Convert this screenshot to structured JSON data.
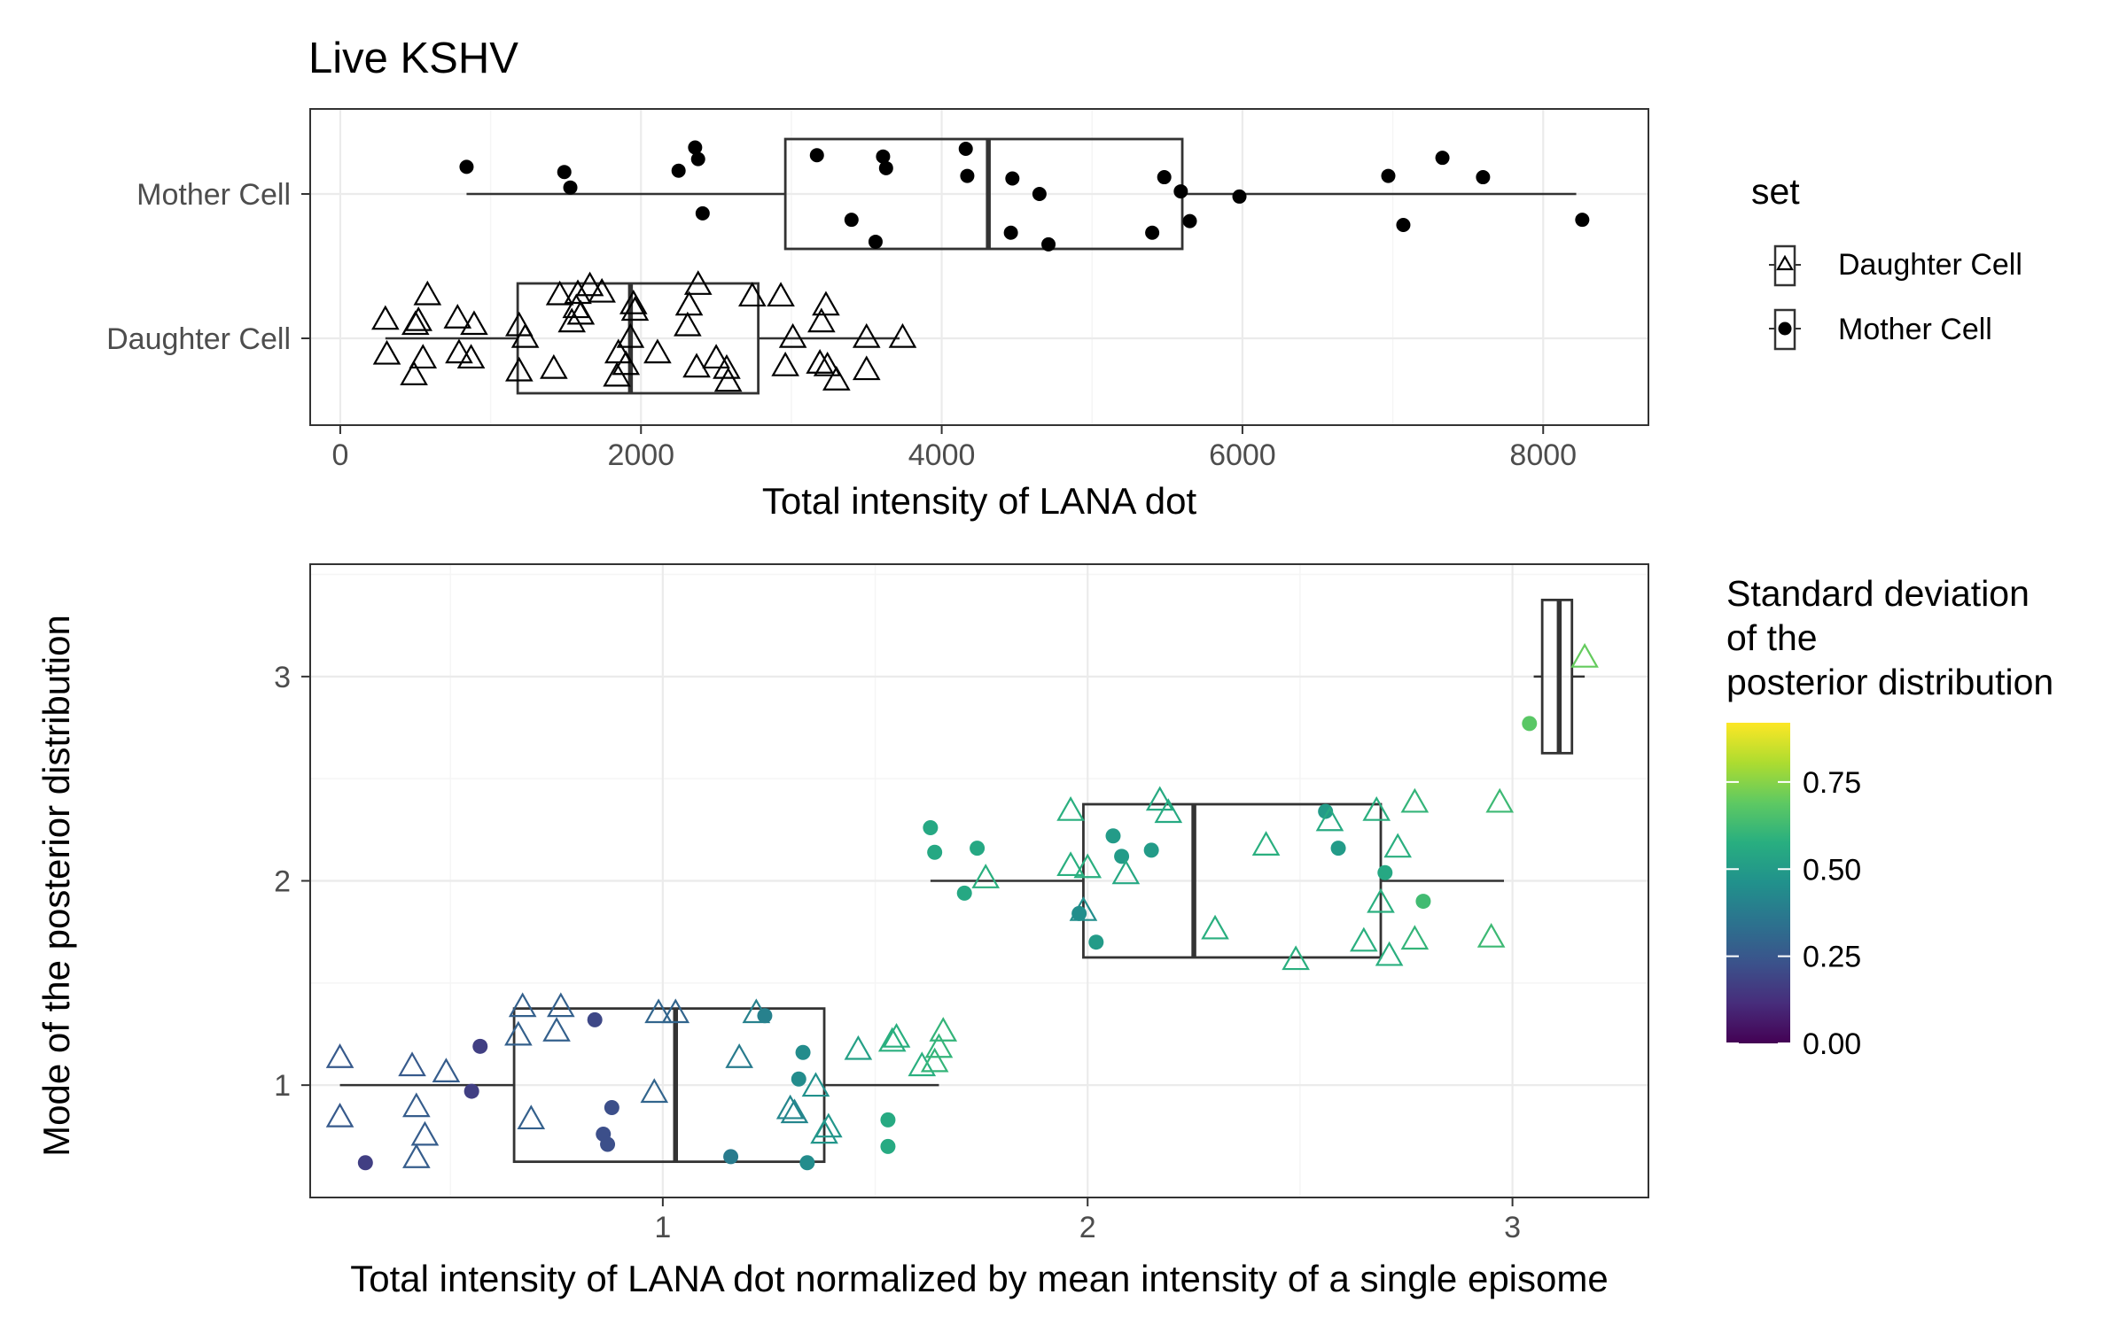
{
  "chart_data": [
    {
      "type": "boxplot",
      "title": "Live KSHV",
      "xlabel": "Total intensity of LANA dot",
      "ylabel": "",
      "orientation": "horizontal",
      "xlim": [
        -200,
        8700
      ],
      "x_ticks": [
        0,
        2000,
        4000,
        6000,
        8000
      ],
      "x_tick_labels": [
        "0",
        "2000",
        "4000",
        "6000",
        "8000"
      ],
      "categories": [
        "Daughter Cell",
        "Mother Cell"
      ],
      "grid": true,
      "legend": {
        "title": "set",
        "position": "right",
        "entries": [
          {
            "label": "Daughter Cell",
            "shape": "open-triangle"
          },
          {
            "label": "Mother Cell",
            "shape": "filled-circle"
          }
        ]
      },
      "boxes": [
        {
          "category": "Mother Cell",
          "whisker_low": 840,
          "q1": 2960,
          "median": 4310,
          "q3": 5600,
          "whisker_high": 8220
        },
        {
          "category": "Daughter Cell",
          "whisker_low": 300,
          "q1": 1180,
          "median": 1930,
          "q3": 2780,
          "whisker_high": 3720
        }
      ],
      "points": {
        "Mother Cell": [
          {
            "x": 840,
            "y": 0.21
          },
          {
            "x": 1490,
            "y": 0.17
          },
          {
            "x": 1530,
            "y": 0.05
          },
          {
            "x": 2250,
            "y": 0.18
          },
          {
            "x": 2360,
            "y": 0.36
          },
          {
            "x": 2380,
            "y": 0.27
          },
          {
            "x": 2410,
            "y": -0.15
          },
          {
            "x": 3170,
            "y": 0.3
          },
          {
            "x": 3400,
            "y": -0.2
          },
          {
            "x": 3560,
            "y": -0.37
          },
          {
            "x": 3610,
            "y": 0.29
          },
          {
            "x": 3630,
            "y": 0.2
          },
          {
            "x": 4160,
            "y": 0.35
          },
          {
            "x": 4170,
            "y": 0.14
          },
          {
            "x": 4460,
            "y": -0.3
          },
          {
            "x": 4470,
            "y": 0.12
          },
          {
            "x": 4650,
            "y": 0.0
          },
          {
            "x": 4710,
            "y": -0.39
          },
          {
            "x": 5400,
            "y": -0.3
          },
          {
            "x": 5480,
            "y": 0.13
          },
          {
            "x": 5590,
            "y": 0.02
          },
          {
            "x": 5650,
            "y": -0.21
          },
          {
            "x": 5980,
            "y": -0.02
          },
          {
            "x": 6970,
            "y": 0.14
          },
          {
            "x": 7070,
            "y": -0.24
          },
          {
            "x": 7330,
            "y": 0.28
          },
          {
            "x": 7600,
            "y": 0.13
          },
          {
            "x": 8260,
            "y": -0.2
          }
        ],
        "Daughter Cell": [
          {
            "x": 300,
            "y": 0.14
          },
          {
            "x": 310,
            "y": -0.13
          },
          {
            "x": 490,
            "y": -0.29
          },
          {
            "x": 500,
            "y": 0.1
          },
          {
            "x": 520,
            "y": 0.13
          },
          {
            "x": 550,
            "y": -0.16
          },
          {
            "x": 580,
            "y": 0.33
          },
          {
            "x": 780,
            "y": 0.15
          },
          {
            "x": 790,
            "y": -0.12
          },
          {
            "x": 870,
            "y": -0.16
          },
          {
            "x": 890,
            "y": 0.1
          },
          {
            "x": 1190,
            "y": 0.09
          },
          {
            "x": 1190,
            "y": -0.26
          },
          {
            "x": 1230,
            "y": 0.0
          },
          {
            "x": 1420,
            "y": -0.24
          },
          {
            "x": 1460,
            "y": 0.33
          },
          {
            "x": 1540,
            "y": 0.12
          },
          {
            "x": 1570,
            "y": 0.23
          },
          {
            "x": 1580,
            "y": 0.34
          },
          {
            "x": 1600,
            "y": 0.18
          },
          {
            "x": 1660,
            "y": 0.4
          },
          {
            "x": 1740,
            "y": 0.35
          },
          {
            "x": 1840,
            "y": -0.3
          },
          {
            "x": 1850,
            "y": -0.12
          },
          {
            "x": 1900,
            "y": -0.21
          },
          {
            "x": 1930,
            "y": 0.0
          },
          {
            "x": 1950,
            "y": 0.26
          },
          {
            "x": 1960,
            "y": 0.21
          },
          {
            "x": 2110,
            "y": -0.12
          },
          {
            "x": 2310,
            "y": 0.09
          },
          {
            "x": 2320,
            "y": 0.25
          },
          {
            "x": 2370,
            "y": -0.23
          },
          {
            "x": 2380,
            "y": 0.41
          },
          {
            "x": 2500,
            "y": -0.16
          },
          {
            "x": 2570,
            "y": -0.24
          },
          {
            "x": 2580,
            "y": -0.34
          },
          {
            "x": 2740,
            "y": 0.32
          },
          {
            "x": 2930,
            "y": 0.32
          },
          {
            "x": 2960,
            "y": -0.22
          },
          {
            "x": 3010,
            "y": 0.0
          },
          {
            "x": 3190,
            "y": -0.2
          },
          {
            "x": 3200,
            "y": 0.12
          },
          {
            "x": 3230,
            "y": 0.25
          },
          {
            "x": 3240,
            "y": -0.22
          },
          {
            "x": 3300,
            "y": -0.33
          },
          {
            "x": 3500,
            "y": 0.0
          },
          {
            "x": 3500,
            "y": -0.25
          },
          {
            "x": 3740,
            "y": 0.0
          }
        ]
      }
    },
    {
      "type": "boxplot",
      "title": "",
      "xlabel": "Total intensity of LANA dot normalized by mean intensity of a single episome",
      "ylabel": "Mode of the posterior distribution",
      "orientation": "horizontal",
      "xlim": [
        0.17,
        3.32
      ],
      "ylim": [
        0.45,
        3.55
      ],
      "x_ticks": [
        1,
        2,
        3
      ],
      "x_tick_labels": [
        "1",
        "2",
        "3"
      ],
      "y_ticks": [
        1,
        2,
        3
      ],
      "y_tick_labels": [
        "1",
        "2",
        "3"
      ],
      "grid": true,
      "legend": {
        "title": "Standard deviation\nof the\nposterior distribution",
        "position": "right",
        "type": "colorbar",
        "colormap": "viridis",
        "range": [
          0,
          0.92
        ],
        "ticks": [
          0,
          0.25,
          0.5,
          0.75
        ],
        "tick_labels": [
          "0.00",
          "0.25",
          "0.50",
          "0.75"
        ]
      },
      "boxes": [
        {
          "y": 1,
          "whisker_low": 0.24,
          "q1": 0.65,
          "median": 1.03,
          "q3": 1.38,
          "whisker_high": 1.65
        },
        {
          "y": 2,
          "whisker_low": 1.63,
          "q1": 1.99,
          "median": 2.25,
          "q3": 2.69,
          "whisker_high": 2.98
        },
        {
          "y": 3,
          "whisker_low": 3.05,
          "q1": 3.07,
          "median": 3.11,
          "q3": 3.14,
          "whisker_high": 3.17
        }
      ],
      "points": [
        {
          "x": 0.24,
          "y": 1.13,
          "sd": 0.26,
          "shape": "triangle"
        },
        {
          "x": 0.24,
          "y": 0.84,
          "sd": 0.26,
          "shape": "triangle"
        },
        {
          "x": 0.3,
          "y": 0.62,
          "sd": 0.17,
          "shape": "circle"
        },
        {
          "x": 0.41,
          "y": 1.09,
          "sd": 0.26,
          "shape": "triangle"
        },
        {
          "x": 0.42,
          "y": 0.89,
          "sd": 0.27,
          "shape": "triangle"
        },
        {
          "x": 0.42,
          "y": 0.64,
          "sd": 0.27,
          "shape": "triangle"
        },
        {
          "x": 0.44,
          "y": 0.75,
          "sd": 0.27,
          "shape": "triangle"
        },
        {
          "x": 0.49,
          "y": 1.06,
          "sd": 0.27,
          "shape": "triangle"
        },
        {
          "x": 0.55,
          "y": 0.97,
          "sd": 0.17,
          "shape": "circle"
        },
        {
          "x": 0.57,
          "y": 1.19,
          "sd": 0.17,
          "shape": "circle"
        },
        {
          "x": 0.66,
          "y": 1.24,
          "sd": 0.28,
          "shape": "triangle"
        },
        {
          "x": 0.67,
          "y": 1.38,
          "sd": 0.28,
          "shape": "triangle"
        },
        {
          "x": 0.69,
          "y": 0.83,
          "sd": 0.28,
          "shape": "triangle"
        },
        {
          "x": 0.75,
          "y": 1.26,
          "sd": 0.28,
          "shape": "triangle"
        },
        {
          "x": 0.76,
          "y": 1.38,
          "sd": 0.28,
          "shape": "triangle"
        },
        {
          "x": 0.84,
          "y": 1.32,
          "sd": 0.2,
          "shape": "circle"
        },
        {
          "x": 0.86,
          "y": 0.76,
          "sd": 0.22,
          "shape": "circle"
        },
        {
          "x": 0.87,
          "y": 0.71,
          "sd": 0.22,
          "shape": "circle"
        },
        {
          "x": 0.88,
          "y": 0.89,
          "sd": 0.22,
          "shape": "circle"
        },
        {
          "x": 0.98,
          "y": 0.96,
          "sd": 0.3,
          "shape": "triangle"
        },
        {
          "x": 0.99,
          "y": 1.35,
          "sd": 0.3,
          "shape": "triangle"
        },
        {
          "x": 1.03,
          "y": 1.35,
          "sd": 0.3,
          "shape": "triangle"
        },
        {
          "x": 1.16,
          "y": 0.65,
          "sd": 0.38,
          "shape": "circle"
        },
        {
          "x": 1.18,
          "y": 1.13,
          "sd": 0.38,
          "shape": "triangle"
        },
        {
          "x": 1.22,
          "y": 1.35,
          "sd": 0.4,
          "shape": "triangle"
        },
        {
          "x": 1.24,
          "y": 1.34,
          "sd": 0.4,
          "shape": "circle"
        },
        {
          "x": 1.3,
          "y": 0.88,
          "sd": 0.42,
          "shape": "triangle"
        },
        {
          "x": 1.31,
          "y": 0.86,
          "sd": 0.42,
          "shape": "triangle"
        },
        {
          "x": 1.32,
          "y": 1.03,
          "sd": 0.44,
          "shape": "circle"
        },
        {
          "x": 1.33,
          "y": 1.16,
          "sd": 0.44,
          "shape": "circle"
        },
        {
          "x": 1.34,
          "y": 0.62,
          "sd": 0.44,
          "shape": "circle"
        },
        {
          "x": 1.36,
          "y": 0.99,
          "sd": 0.46,
          "shape": "triangle"
        },
        {
          "x": 1.38,
          "y": 0.76,
          "sd": 0.48,
          "shape": "triangle"
        },
        {
          "x": 1.39,
          "y": 0.79,
          "sd": 0.48,
          "shape": "triangle"
        },
        {
          "x": 1.46,
          "y": 1.17,
          "sd": 0.52,
          "shape": "triangle"
        },
        {
          "x": 1.53,
          "y": 0.83,
          "sd": 0.56,
          "shape": "circle"
        },
        {
          "x": 1.53,
          "y": 0.7,
          "sd": 0.56,
          "shape": "circle"
        },
        {
          "x": 1.54,
          "y": 1.21,
          "sd": 0.58,
          "shape": "triangle"
        },
        {
          "x": 1.55,
          "y": 1.23,
          "sd": 0.58,
          "shape": "triangle"
        },
        {
          "x": 1.61,
          "y": 1.09,
          "sd": 0.58,
          "shape": "triangle"
        },
        {
          "x": 1.64,
          "y": 1.11,
          "sd": 0.6,
          "shape": "triangle"
        },
        {
          "x": 1.65,
          "y": 1.18,
          "sd": 0.6,
          "shape": "triangle"
        },
        {
          "x": 1.66,
          "y": 1.26,
          "sd": 0.6,
          "shape": "triangle"
        },
        {
          "x": 1.63,
          "y": 2.26,
          "sd": 0.55,
          "shape": "circle"
        },
        {
          "x": 1.64,
          "y": 2.14,
          "sd": 0.55,
          "shape": "circle"
        },
        {
          "x": 1.71,
          "y": 1.94,
          "sd": 0.55,
          "shape": "circle"
        },
        {
          "x": 1.74,
          "y": 2.16,
          "sd": 0.55,
          "shape": "circle"
        },
        {
          "x": 1.76,
          "y": 2.01,
          "sd": 0.58,
          "shape": "triangle"
        },
        {
          "x": 1.96,
          "y": 2.34,
          "sd": 0.58,
          "shape": "triangle"
        },
        {
          "x": 1.96,
          "y": 2.07,
          "sd": 0.58,
          "shape": "triangle"
        },
        {
          "x": 1.98,
          "y": 1.84,
          "sd": 0.45,
          "shape": "circle"
        },
        {
          "x": 1.99,
          "y": 1.85,
          "sd": 0.45,
          "shape": "triangle"
        },
        {
          "x": 2.0,
          "y": 2.06,
          "sd": 0.58,
          "shape": "triangle"
        },
        {
          "x": 2.02,
          "y": 1.7,
          "sd": 0.5,
          "shape": "circle"
        },
        {
          "x": 2.06,
          "y": 2.22,
          "sd": 0.5,
          "shape": "circle"
        },
        {
          "x": 2.08,
          "y": 2.12,
          "sd": 0.5,
          "shape": "circle"
        },
        {
          "x": 2.09,
          "y": 2.03,
          "sd": 0.55,
          "shape": "triangle"
        },
        {
          "x": 2.15,
          "y": 2.15,
          "sd": 0.5,
          "shape": "circle"
        },
        {
          "x": 2.17,
          "y": 2.39,
          "sd": 0.56,
          "shape": "triangle"
        },
        {
          "x": 2.19,
          "y": 2.33,
          "sd": 0.56,
          "shape": "triangle"
        },
        {
          "x": 2.3,
          "y": 1.76,
          "sd": 0.58,
          "shape": "triangle"
        },
        {
          "x": 2.42,
          "y": 2.17,
          "sd": 0.58,
          "shape": "triangle"
        },
        {
          "x": 2.49,
          "y": 1.61,
          "sd": 0.58,
          "shape": "triangle"
        },
        {
          "x": 2.56,
          "y": 2.34,
          "sd": 0.5,
          "shape": "circle"
        },
        {
          "x": 2.57,
          "y": 2.29,
          "sd": 0.56,
          "shape": "triangle"
        },
        {
          "x": 2.59,
          "y": 2.16,
          "sd": 0.5,
          "shape": "circle"
        },
        {
          "x": 2.65,
          "y": 1.7,
          "sd": 0.58,
          "shape": "triangle"
        },
        {
          "x": 2.68,
          "y": 2.34,
          "sd": 0.58,
          "shape": "triangle"
        },
        {
          "x": 2.69,
          "y": 1.89,
          "sd": 0.58,
          "shape": "triangle"
        },
        {
          "x": 2.7,
          "y": 2.04,
          "sd": 0.55,
          "shape": "circle"
        },
        {
          "x": 2.71,
          "y": 1.63,
          "sd": 0.58,
          "shape": "triangle"
        },
        {
          "x": 2.73,
          "y": 2.16,
          "sd": 0.58,
          "shape": "triangle"
        },
        {
          "x": 2.77,
          "y": 2.38,
          "sd": 0.6,
          "shape": "triangle"
        },
        {
          "x": 2.77,
          "y": 1.71,
          "sd": 0.6,
          "shape": "triangle"
        },
        {
          "x": 2.79,
          "y": 1.9,
          "sd": 0.63,
          "shape": "circle"
        },
        {
          "x": 2.95,
          "y": 1.72,
          "sd": 0.62,
          "shape": "triangle"
        },
        {
          "x": 2.97,
          "y": 2.38,
          "sd": 0.62,
          "shape": "triangle"
        },
        {
          "x": 3.04,
          "y": 2.77,
          "sd": 0.68,
          "shape": "circle"
        },
        {
          "x": 3.17,
          "y": 3.09,
          "sd": 0.7,
          "shape": "triangle"
        }
      ]
    }
  ]
}
